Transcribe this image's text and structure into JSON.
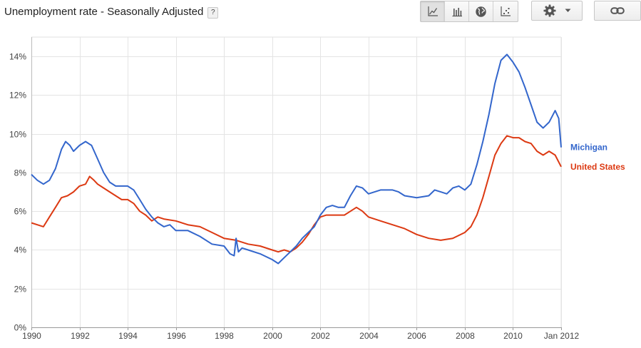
{
  "header": {
    "title": "Unemployment rate - Seasonally Adjusted",
    "help_label": "?"
  },
  "toolbar": {
    "icons": [
      "line-chart-icon",
      "bar-chart-icon",
      "globe-icon",
      "scatter-icon",
      "gear-icon",
      "chevron-down-icon",
      "link-icon"
    ],
    "active_view": "line-chart"
  },
  "chart_data": {
    "type": "line",
    "title": "Unemployment rate - Seasonally Adjusted",
    "xlabel": "",
    "ylabel": "",
    "x_ticks": [
      "1990",
      "1992",
      "1994",
      "1996",
      "1998",
      "2000",
      "2002",
      "2004",
      "2006",
      "2008",
      "2010",
      "Jan 2012"
    ],
    "y_ticks": [
      "0%",
      "2%",
      "4%",
      "6%",
      "8%",
      "10%",
      "12%",
      "14%"
    ],
    "xlim": [
      1990.0,
      2012.0
    ],
    "ylim": [
      0,
      15
    ],
    "grid": true,
    "legend": "right, labels at line ends",
    "series": [
      {
        "name": "Michigan",
        "color": "#3366cc",
        "points": [
          [
            1990.0,
            7.9
          ],
          [
            1990.25,
            7.6
          ],
          [
            1990.5,
            7.4
          ],
          [
            1990.75,
            7.6
          ],
          [
            1991.0,
            8.2
          ],
          [
            1991.25,
            9.2
          ],
          [
            1991.42,
            9.6
          ],
          [
            1991.6,
            9.4
          ],
          [
            1991.75,
            9.1
          ],
          [
            1992.0,
            9.4
          ],
          [
            1992.25,
            9.6
          ],
          [
            1992.5,
            9.4
          ],
          [
            1992.75,
            8.7
          ],
          [
            1993.0,
            8.0
          ],
          [
            1993.25,
            7.5
          ],
          [
            1993.5,
            7.3
          ],
          [
            1994.0,
            7.3
          ],
          [
            1994.25,
            7.1
          ],
          [
            1994.5,
            6.6
          ],
          [
            1994.75,
            6.1
          ],
          [
            1995.0,
            5.7
          ],
          [
            1995.25,
            5.4
          ],
          [
            1995.5,
            5.2
          ],
          [
            1995.75,
            5.3
          ],
          [
            1996.0,
            5.0
          ],
          [
            1996.5,
            5.0
          ],
          [
            1997.0,
            4.7
          ],
          [
            1997.5,
            4.3
          ],
          [
            1998.0,
            4.2
          ],
          [
            1998.25,
            3.8
          ],
          [
            1998.42,
            3.7
          ],
          [
            1998.5,
            4.6
          ],
          [
            1998.6,
            3.9
          ],
          [
            1998.75,
            4.1
          ],
          [
            1999.0,
            4.0
          ],
          [
            1999.5,
            3.8
          ],
          [
            2000.0,
            3.5
          ],
          [
            2000.25,
            3.3
          ],
          [
            2000.5,
            3.6
          ],
          [
            2000.75,
            3.9
          ],
          [
            2001.0,
            4.2
          ],
          [
            2001.25,
            4.6
          ],
          [
            2001.5,
            4.9
          ],
          [
            2001.75,
            5.2
          ],
          [
            2002.0,
            5.8
          ],
          [
            2002.25,
            6.2
          ],
          [
            2002.5,
            6.3
          ],
          [
            2002.75,
            6.2
          ],
          [
            2003.0,
            6.2
          ],
          [
            2003.25,
            6.8
          ],
          [
            2003.5,
            7.3
          ],
          [
            2003.75,
            7.2
          ],
          [
            2004.0,
            6.9
          ],
          [
            2004.5,
            7.1
          ],
          [
            2005.0,
            7.1
          ],
          [
            2005.25,
            7.0
          ],
          [
            2005.5,
            6.8
          ],
          [
            2006.0,
            6.7
          ],
          [
            2006.5,
            6.8
          ],
          [
            2006.75,
            7.1
          ],
          [
            2007.0,
            7.0
          ],
          [
            2007.25,
            6.9
          ],
          [
            2007.5,
            7.2
          ],
          [
            2007.75,
            7.3
          ],
          [
            2008.0,
            7.1
          ],
          [
            2008.25,
            7.4
          ],
          [
            2008.5,
            8.4
          ],
          [
            2008.75,
            9.6
          ],
          [
            2009.0,
            11.0
          ],
          [
            2009.25,
            12.6
          ],
          [
            2009.5,
            13.8
          ],
          [
            2009.75,
            14.1
          ],
          [
            2010.0,
            13.7
          ],
          [
            2010.25,
            13.2
          ],
          [
            2010.5,
            12.4
          ],
          [
            2010.75,
            11.5
          ],
          [
            2011.0,
            10.6
          ],
          [
            2011.25,
            10.3
          ],
          [
            2011.5,
            10.6
          ],
          [
            2011.75,
            11.2
          ],
          [
            2011.9,
            10.8
          ],
          [
            2012.0,
            9.3
          ]
        ]
      },
      {
        "name": "United States",
        "color": "#dc3912",
        "points": [
          [
            1990.0,
            5.4
          ],
          [
            1990.25,
            5.3
          ],
          [
            1990.5,
            5.2
          ],
          [
            1990.75,
            5.7
          ],
          [
            1991.0,
            6.2
          ],
          [
            1991.25,
            6.7
          ],
          [
            1991.5,
            6.8
          ],
          [
            1991.75,
            7.0
          ],
          [
            1992.0,
            7.3
          ],
          [
            1992.25,
            7.4
          ],
          [
            1992.42,
            7.8
          ],
          [
            1992.6,
            7.6
          ],
          [
            1992.75,
            7.4
          ],
          [
            1993.0,
            7.2
          ],
          [
            1993.25,
            7.0
          ],
          [
            1993.5,
            6.8
          ],
          [
            1993.75,
            6.6
          ],
          [
            1994.0,
            6.6
          ],
          [
            1994.25,
            6.4
          ],
          [
            1994.5,
            6.0
          ],
          [
            1994.75,
            5.8
          ],
          [
            1995.0,
            5.5
          ],
          [
            1995.25,
            5.7
          ],
          [
            1995.5,
            5.6
          ],
          [
            1996.0,
            5.5
          ],
          [
            1996.5,
            5.3
          ],
          [
            1997.0,
            5.2
          ],
          [
            1997.5,
            4.9
          ],
          [
            1998.0,
            4.6
          ],
          [
            1998.5,
            4.5
          ],
          [
            1999.0,
            4.3
          ],
          [
            1999.5,
            4.2
          ],
          [
            2000.0,
            4.0
          ],
          [
            2000.25,
            3.9
          ],
          [
            2000.5,
            4.0
          ],
          [
            2000.75,
            3.9
          ],
          [
            2001.0,
            4.1
          ],
          [
            2001.25,
            4.4
          ],
          [
            2001.5,
            4.8
          ],
          [
            2001.75,
            5.3
          ],
          [
            2002.0,
            5.7
          ],
          [
            2002.25,
            5.8
          ],
          [
            2002.5,
            5.8
          ],
          [
            2002.75,
            5.8
          ],
          [
            2003.0,
            5.8
          ],
          [
            2003.25,
            6.0
          ],
          [
            2003.5,
            6.2
          ],
          [
            2003.75,
            6.0
          ],
          [
            2004.0,
            5.7
          ],
          [
            2004.5,
            5.5
          ],
          [
            2005.0,
            5.3
          ],
          [
            2005.5,
            5.1
          ],
          [
            2006.0,
            4.8
          ],
          [
            2006.5,
            4.6
          ],
          [
            2007.0,
            4.5
          ],
          [
            2007.5,
            4.6
          ],
          [
            2008.0,
            4.9
          ],
          [
            2008.25,
            5.2
          ],
          [
            2008.5,
            5.8
          ],
          [
            2008.75,
            6.7
          ],
          [
            2009.0,
            7.8
          ],
          [
            2009.25,
            8.9
          ],
          [
            2009.5,
            9.5
          ],
          [
            2009.75,
            9.9
          ],
          [
            2010.0,
            9.8
          ],
          [
            2010.25,
            9.8
          ],
          [
            2010.5,
            9.6
          ],
          [
            2010.75,
            9.5
          ],
          [
            2011.0,
            9.1
          ],
          [
            2011.25,
            8.9
          ],
          [
            2011.5,
            9.1
          ],
          [
            2011.75,
            8.9
          ],
          [
            2012.0,
            8.3
          ]
        ]
      }
    ]
  }
}
